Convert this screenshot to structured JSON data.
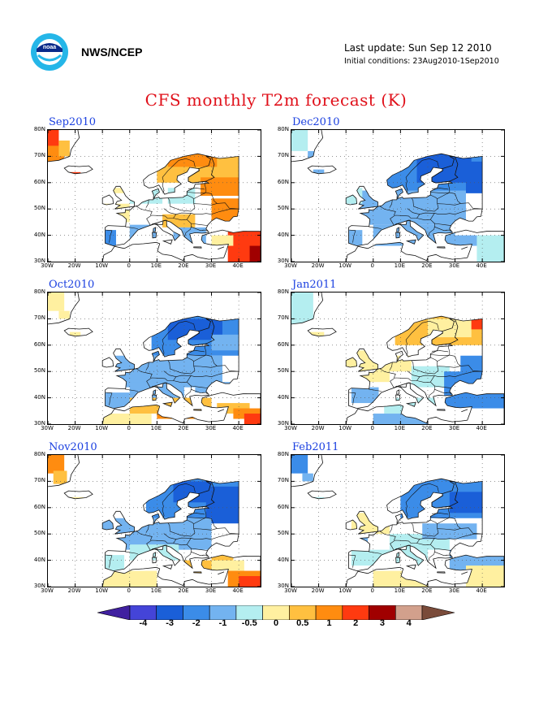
{
  "header": {
    "agency": "NWS/NCEP",
    "last_update": "Last update: Sun Sep 12 2010",
    "initial_conditions": "Initial conditions: 23Aug2010-1Sep2010"
  },
  "title": "CFS monthly T2m forecast (K)",
  "axes": {
    "lat_labels": [
      "80N",
      "70N",
      "60N",
      "50N",
      "40N",
      "30N"
    ],
    "lon_labels": [
      "30W",
      "20W",
      "10W",
      "0",
      "10E",
      "20E",
      "30E",
      "40E"
    ]
  },
  "panels": [
    {
      "label": "Sep2010",
      "dominant": "positive"
    },
    {
      "label": "Dec2010",
      "dominant": "negative"
    },
    {
      "label": "Oct2010",
      "dominant": "negative"
    },
    {
      "label": "Jan2011",
      "dominant": "mixed"
    },
    {
      "label": "Nov2010",
      "dominant": "negative"
    },
    {
      "label": "Feb2011",
      "dominant": "negative"
    }
  ],
  "colorbar": {
    "labels": [
      "-4",
      "-3",
      "-2",
      "-1",
      "-0.5",
      "0",
      "0.5",
      "1",
      "2",
      "3",
      "4"
    ],
    "colors": [
      "#4020a0",
      "#4444d8",
      "#1a5fd8",
      "#3b8ce8",
      "#73b3f0",
      "#b4eef0",
      "#fff0a0",
      "#ffc040",
      "#ff8c10",
      "#ff3a10",
      "#a00000",
      "#d2a08c",
      "#7a4b3a"
    ]
  }
}
